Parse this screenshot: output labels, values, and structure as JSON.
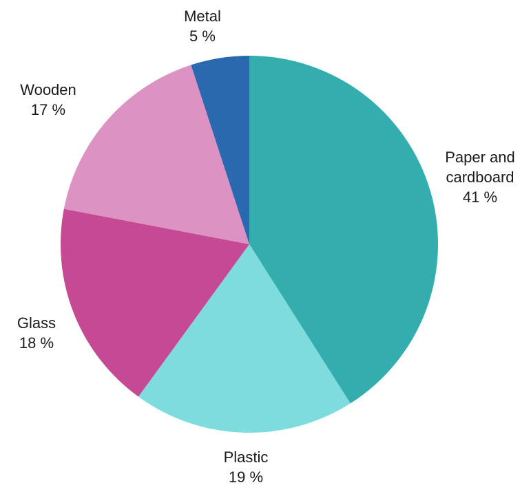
{
  "chart_data": {
    "type": "pie",
    "title": "",
    "legend": "none",
    "start": "12 o'clock",
    "direction": "clockwise",
    "slices": [
      {
        "label": "Paper and cardboard",
        "value": 41,
        "value_label": "41 %",
        "color": "#33adad"
      },
      {
        "label": "Plastic",
        "value": 19,
        "value_label": "19 %",
        "color": "#7fdcdc"
      },
      {
        "label": "Glass",
        "value": 18,
        "value_label": "18 %",
        "color": "#c54a93"
      },
      {
        "label": "Wooden",
        "value": 17,
        "value_label": "17 %",
        "color": "#dc93c3"
      },
      {
        "label": "Metal",
        "value": 5,
        "value_label": "5 %",
        "color": "#2a69b0"
      }
    ]
  }
}
